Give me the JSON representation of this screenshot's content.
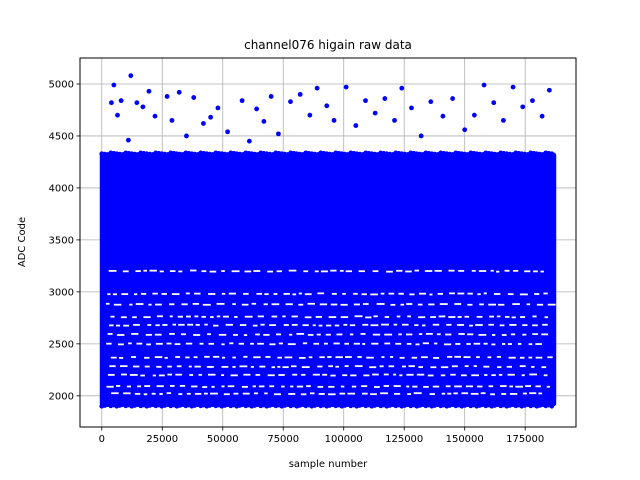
{
  "chart_data": {
    "type": "scatter",
    "title": "channel076 higain raw data",
    "xlabel": "sample number",
    "ylabel": "ADC Code",
    "xlim": [
      -9000,
      196000
    ],
    "ylim": [
      1700,
      5250
    ],
    "xticks": [
      0,
      25000,
      50000,
      75000,
      100000,
      125000,
      150000,
      175000
    ],
    "xtick_labels": [
      "0",
      "25000",
      "50000",
      "75000",
      "100000",
      "125000",
      "150000",
      "175000"
    ],
    "yticks": [
      2000,
      2500,
      3000,
      3500,
      4000,
      4500,
      5000
    ],
    "ytick_labels": [
      "2000",
      "2500",
      "3000",
      "3500",
      "4000",
      "4500",
      "5000"
    ],
    "grid": true,
    "marker_color": "#0000ff",
    "series": [
      {
        "x_range": [
          0,
          187000
        ],
        "dense_band": [
          1900,
          4340
        ],
        "gap_levels": [
          2020,
          2090,
          2200,
          2280,
          2370,
          2500,
          2590,
          2680,
          2760,
          2880,
          2980,
          3200
        ],
        "outliers": [
          [
            4000,
            4820
          ],
          [
            5000,
            4990
          ],
          [
            6500,
            4700
          ],
          [
            8000,
            4840
          ],
          [
            11000,
            4460
          ],
          [
            12000,
            5080
          ],
          [
            14500,
            4820
          ],
          [
            17000,
            4780
          ],
          [
            19500,
            4930
          ],
          [
            22000,
            4690
          ],
          [
            27000,
            4880
          ],
          [
            29000,
            4650
          ],
          [
            32000,
            4920
          ],
          [
            35000,
            4500
          ],
          [
            38000,
            4870
          ],
          [
            42000,
            4620
          ],
          [
            45000,
            4680
          ],
          [
            48000,
            4770
          ],
          [
            52000,
            4540
          ],
          [
            58000,
            4840
          ],
          [
            61000,
            4450
          ],
          [
            64000,
            4760
          ],
          [
            67000,
            4640
          ],
          [
            70000,
            4880
          ],
          [
            73000,
            4520
          ],
          [
            78000,
            4830
          ],
          [
            82000,
            4900
          ],
          [
            86000,
            4700
          ],
          [
            89000,
            4960
          ],
          [
            93000,
            4790
          ],
          [
            96000,
            4650
          ],
          [
            101000,
            4970
          ],
          [
            105000,
            4600
          ],
          [
            109000,
            4840
          ],
          [
            113000,
            4720
          ],
          [
            117000,
            4860
          ],
          [
            121000,
            4650
          ],
          [
            124000,
            4960
          ],
          [
            128000,
            4770
          ],
          [
            132000,
            4500
          ],
          [
            136000,
            4830
          ],
          [
            141000,
            4690
          ],
          [
            145000,
            4860
          ],
          [
            150000,
            4560
          ],
          [
            154000,
            4700
          ],
          [
            158000,
            4990
          ],
          [
            162000,
            4820
          ],
          [
            166000,
            4650
          ],
          [
            170000,
            4970
          ],
          [
            174000,
            4780
          ],
          [
            178000,
            4840
          ],
          [
            182000,
            4690
          ],
          [
            185000,
            4940
          ]
        ]
      }
    ]
  }
}
